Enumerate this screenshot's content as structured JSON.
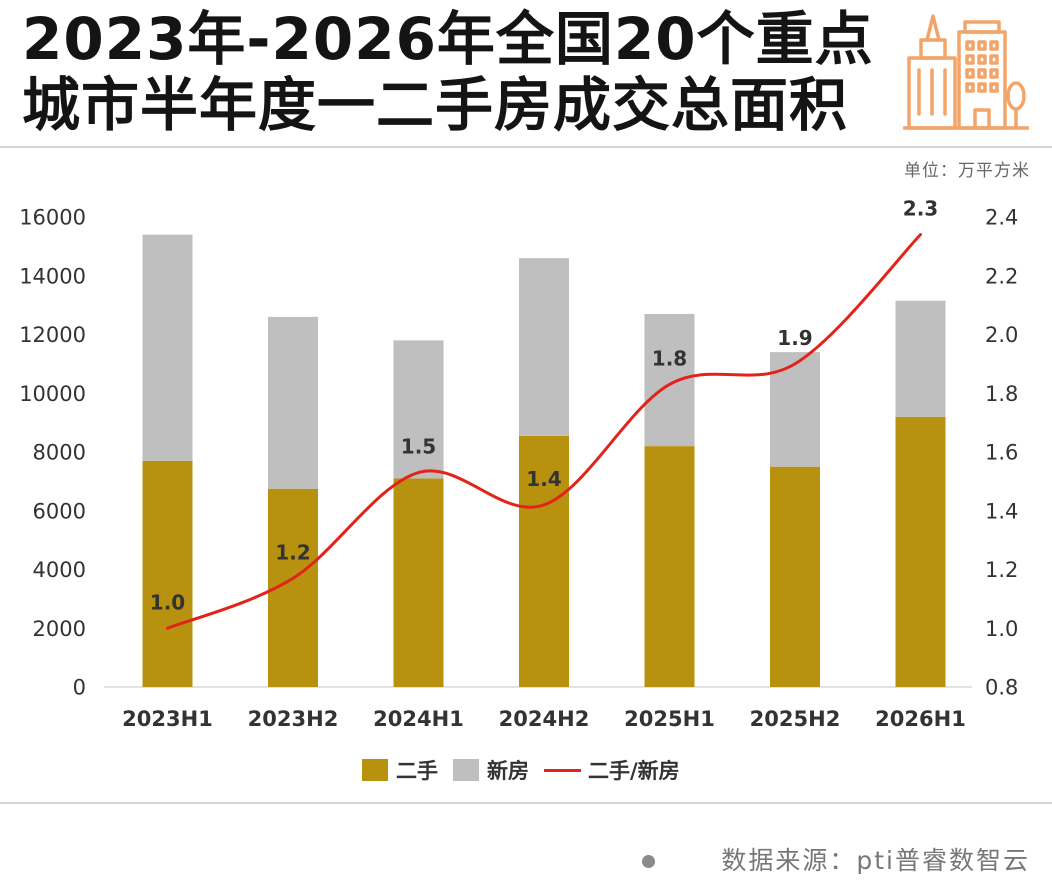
{
  "header": {
    "icon": "city-buildings-icon",
    "icon_color": "#F3A468"
  },
  "chart_data": {
    "type": "bar",
    "stacked": true,
    "title_lines": [
      "2023年-2026年全国20个重点",
      "城市半年度一二手房成交总面积"
    ],
    "unit_label": "单位：万平方米",
    "categories": [
      "2023H1",
      "2023H2",
      "2024H1",
      "2024H2",
      "2025H1",
      "2025H2",
      "2026H1"
    ],
    "series": [
      {
        "name": "二手",
        "type": "bar",
        "y_axis": "left",
        "color": "#B8920F",
        "values": [
          7700,
          6750,
          7100,
          8550,
          8200,
          7500,
          9200
        ]
      },
      {
        "name": "新房",
        "type": "bar",
        "y_axis": "left",
        "color": "#BFBFBF",
        "values": [
          7700,
          5850,
          4700,
          6050,
          4500,
          3900,
          3950
        ]
      },
      {
        "name": "二手/新房",
        "type": "line",
        "y_axis": "right",
        "smooth": true,
        "color": "#E2231A",
        "values": [
          1.0,
          1.17,
          1.53,
          1.42,
          1.83,
          1.9,
          2.34
        ],
        "labels": [
          "1.0",
          "1.2",
          "1.5",
          "1.4",
          "1.8",
          "1.9",
          "2.3"
        ]
      }
    ],
    "y_left": {
      "range": [
        0,
        16000
      ],
      "ticks": [
        "0",
        "2000",
        "4000",
        "6000",
        "8000",
        "10000",
        "12000",
        "14000",
        "16000"
      ]
    },
    "y_right": {
      "range": [
        0.8,
        2.4
      ],
      "ticks": [
        "0.8",
        "1.0",
        "1.2",
        "1.4",
        "1.6",
        "1.8",
        "2.0",
        "2.2",
        "2.4"
      ]
    },
    "grid": false,
    "legend": "bottom-center"
  },
  "footer": {
    "source": "数据来源：pti普睿数智云"
  }
}
